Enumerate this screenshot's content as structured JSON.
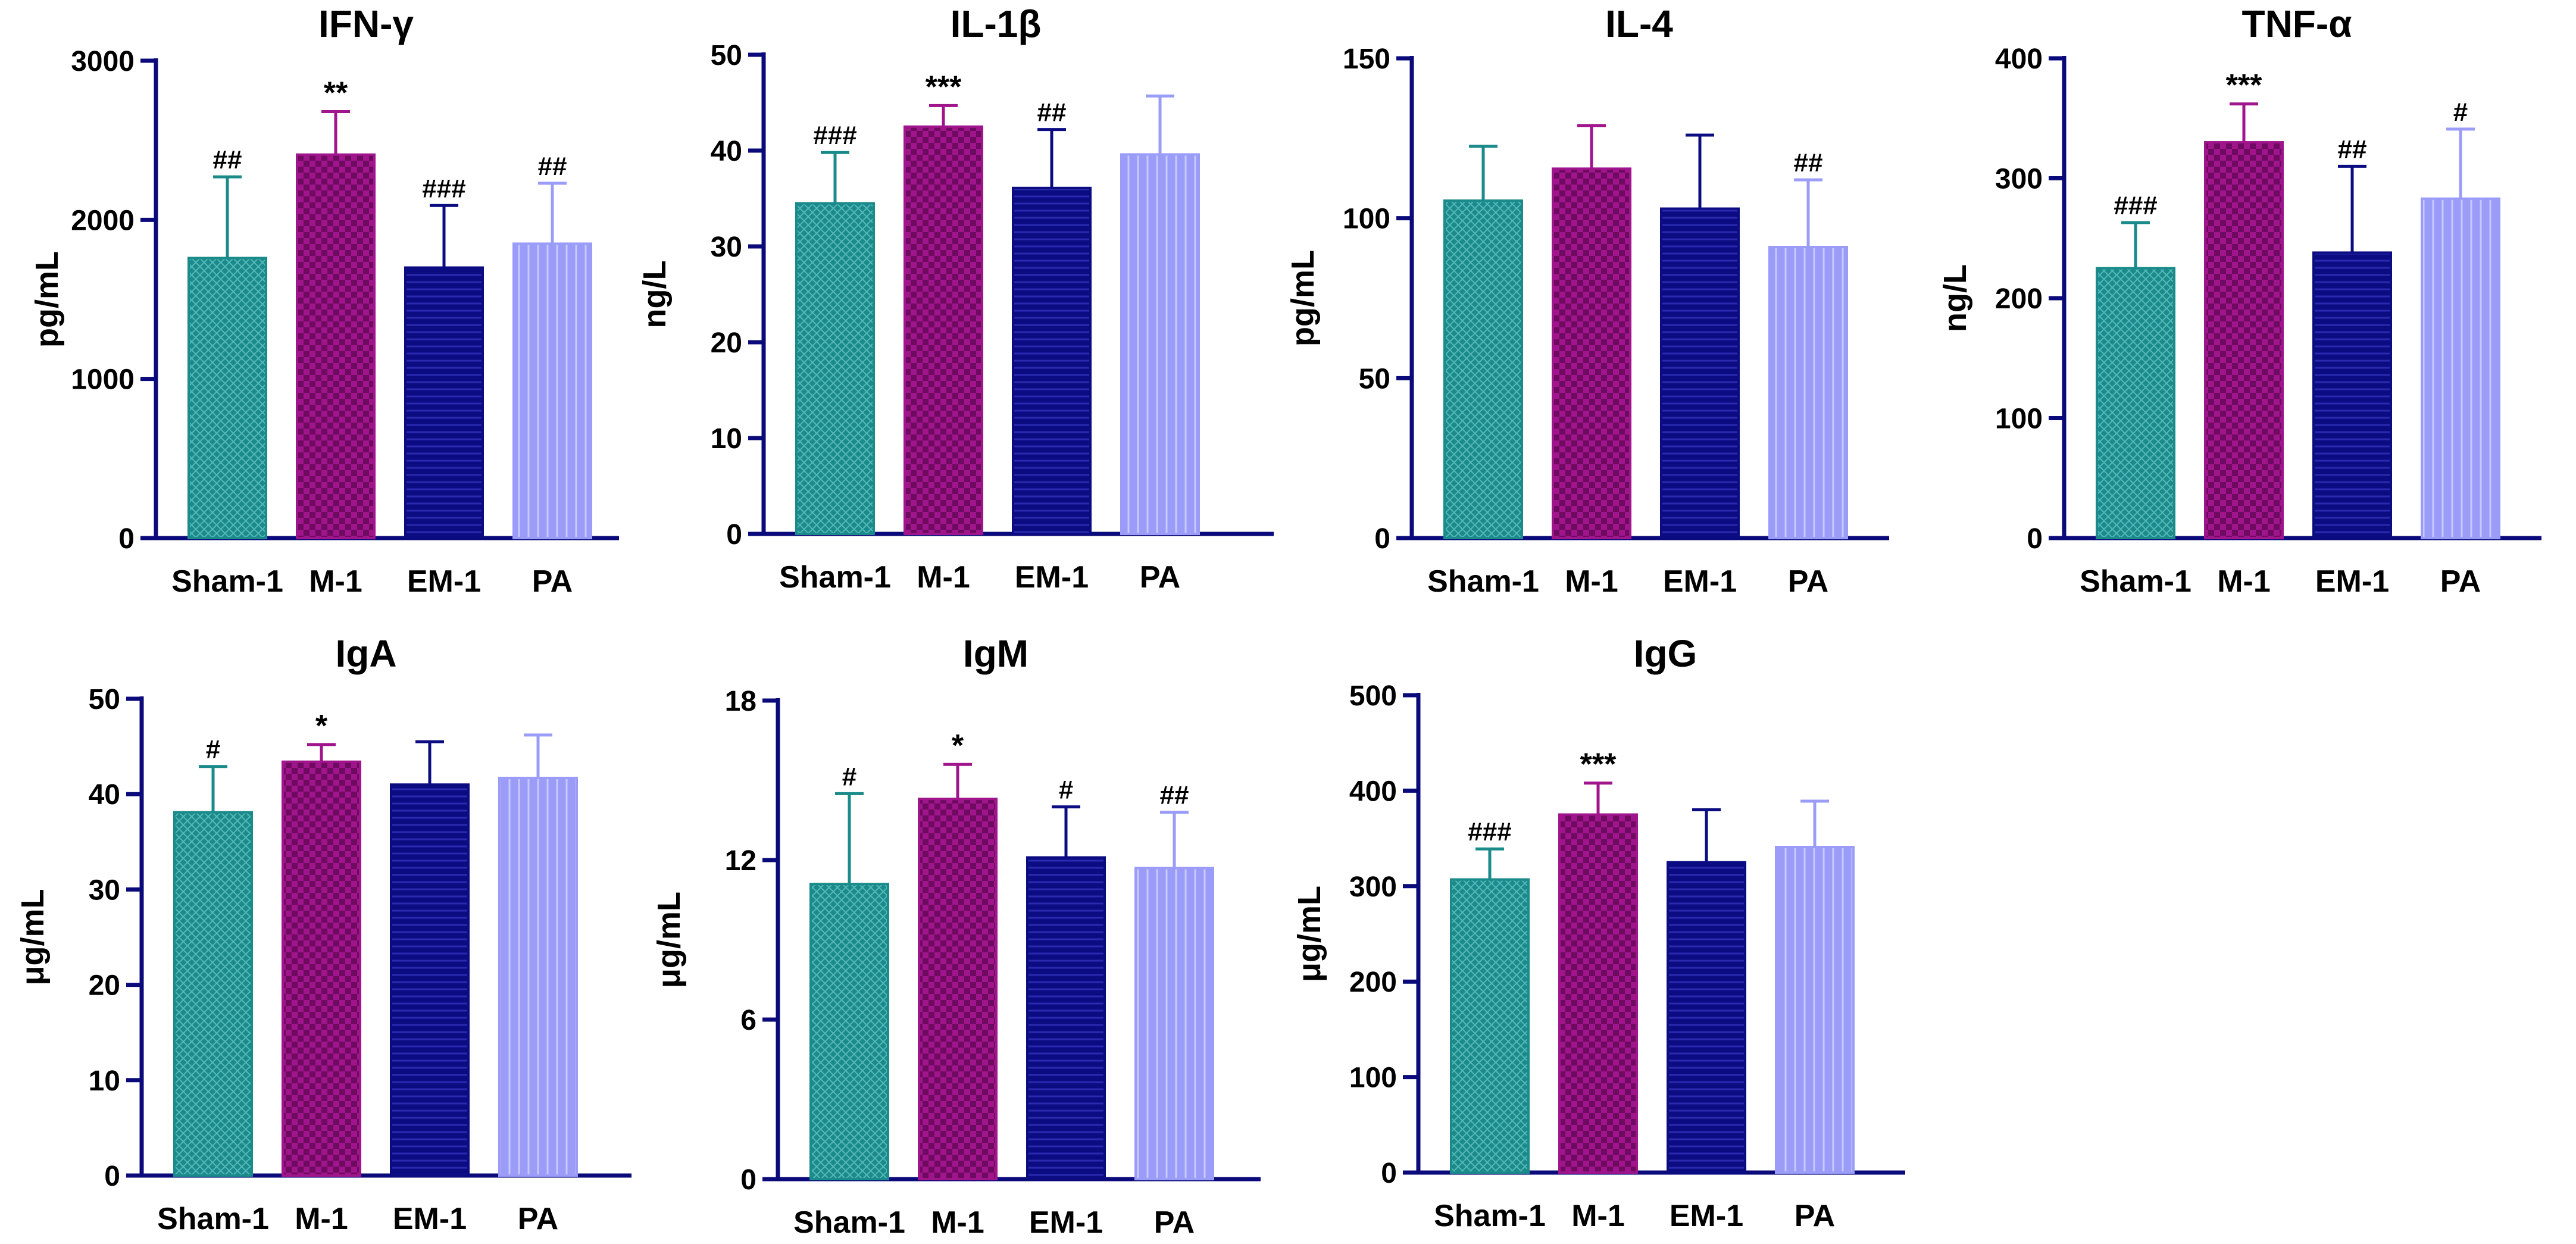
{
  "figure": {
    "groups": [
      "Sham-1",
      "M-1",
      "EM-1",
      "PA"
    ],
    "colors": {
      "Sham-1": "#1a8a8a",
      "M-1": "#a0148c",
      "EM-1": "#0c0c82",
      "PA": "#9a9cf8"
    },
    "axis_color": "#0a0a7a"
  },
  "chart_data": [
    {
      "type": "bar",
      "title": "IFN-γ",
      "ylabel": "pg/mL",
      "categories": [
        "Sham-1",
        "M-1",
        "EM-1",
        "PA"
      ],
      "values": [
        1760,
        2410,
        1700,
        1850
      ],
      "errors": [
        510,
        270,
        390,
        380
      ],
      "annotations": [
        "##",
        "**",
        "###",
        "##"
      ],
      "ylim": [
        0,
        3000
      ],
      "yticks": [
        "0",
        "1000",
        "2000",
        "3000"
      ]
    },
    {
      "type": "bar",
      "title": "IL-1β",
      "ylabel": "ng/L",
      "categories": [
        "Sham-1",
        "M-1",
        "EM-1",
        "PA"
      ],
      "values": [
        34.5,
        42.5,
        36.1,
        39.6
      ],
      "errors": [
        5.3,
        2.2,
        6.1,
        6.1
      ],
      "annotations": [
        "###",
        "***",
        "##",
        ""
      ],
      "ylim": [
        0,
        50
      ],
      "yticks": [
        "0",
        "10",
        "20",
        "30",
        "40",
        "50"
      ]
    },
    {
      "type": "bar",
      "title": "IL-4",
      "ylabel": "pg/mL",
      "categories": [
        "Sham-1",
        "M-1",
        "EM-1",
        "PA"
      ],
      "values": [
        105.5,
        115.5,
        103,
        91
      ],
      "errors": [
        17,
        13.5,
        23,
        21
      ],
      "annotations": [
        "",
        "",
        "",
        "##"
      ],
      "ylim": [
        0,
        150
      ],
      "yticks": [
        "0",
        "50",
        "100",
        "150"
      ]
    },
    {
      "type": "bar",
      "title": "TNF-α",
      "ylabel": "ng/L",
      "categories": [
        "Sham-1",
        "M-1",
        "EM-1",
        "PA"
      ],
      "values": [
        225,
        330,
        238,
        283
      ],
      "errors": [
        38,
        32,
        72,
        58
      ],
      "annotations": [
        "###",
        "***",
        "##",
        "#"
      ],
      "ylim": [
        0,
        400
      ],
      "yticks": [
        "0",
        "100",
        "200",
        "300",
        "400"
      ]
    },
    {
      "type": "bar",
      "title": "IgA",
      "ylabel": "μg/mL",
      "categories": [
        "Sham-1",
        "M-1",
        "EM-1",
        "PA"
      ],
      "values": [
        38.1,
        43.4,
        41,
        41.7
      ],
      "errors": [
        4.8,
        1.8,
        4.5,
        4.5
      ],
      "annotations": [
        "#",
        "*",
        "",
        ""
      ],
      "ylim": [
        0,
        50
      ],
      "yticks": [
        "0",
        "10",
        "20",
        "30",
        "40",
        "50"
      ]
    },
    {
      "type": "bar",
      "title": "IgM",
      "ylabel": "μg/mL",
      "categories": [
        "Sham-1",
        "M-1",
        "EM-1",
        "PA"
      ],
      "values": [
        11.1,
        14.3,
        12.1,
        11.7
      ],
      "errors": [
        3.4,
        1.3,
        1.9,
        2.1
      ],
      "annotations": [
        "#",
        "*",
        "#",
        "##"
      ],
      "ylim": [
        0,
        18
      ],
      "yticks": [
        "0",
        "6",
        "12",
        "18"
      ]
    },
    {
      "type": "bar",
      "title": "IgG",
      "ylabel": "μg/mL",
      "categories": [
        "Sham-1",
        "M-1",
        "EM-1",
        "PA"
      ],
      "values": [
        307,
        375,
        325,
        341
      ],
      "errors": [
        32,
        33,
        55,
        48
      ],
      "annotations": [
        "###",
        "***",
        "",
        ""
      ],
      "ylim": [
        0,
        500
      ],
      "yticks": [
        "0",
        "100",
        "200",
        "300",
        "400",
        "500"
      ]
    }
  ]
}
